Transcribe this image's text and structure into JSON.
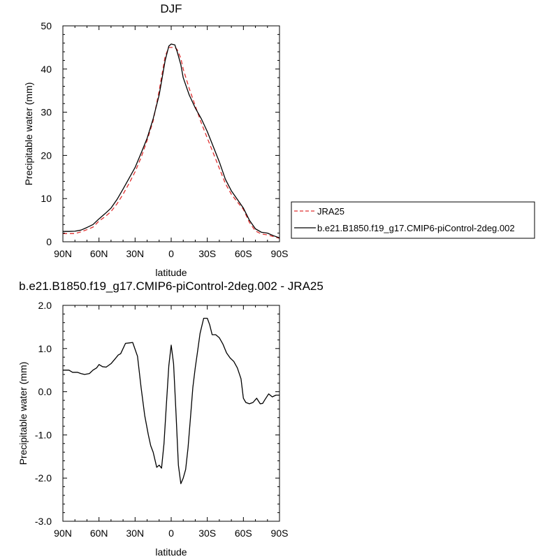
{
  "chart_data": [
    {
      "type": "line",
      "title": "DJF",
      "xlabel": "latitude",
      "ylabel": "Precipitable water (mm)",
      "xlim": [
        -90,
        90
      ],
      "ylim": [
        0,
        50
      ],
      "x_ticks": [
        -90,
        -60,
        -30,
        0,
        30,
        60,
        90
      ],
      "x_tick_labels": [
        "90N",
        "60N",
        "30N",
        "0",
        "30S",
        "60S",
        "90S"
      ],
      "y_ticks": [
        0,
        10,
        20,
        30,
        40,
        50
      ],
      "y_tick_labels": [
        "0",
        "10",
        "20",
        "30",
        "40",
        "50"
      ],
      "legend_position": "right",
      "series": [
        {
          "name": "JRA25",
          "color": "#e03030",
          "dash": "dashed",
          "x": [
            -90,
            -85,
            -80,
            -75,
            -70,
            -65,
            -60,
            -55,
            -50,
            -45,
            -40,
            -35,
            -30,
            -25,
            -20,
            -15,
            -10,
            -5,
            -2,
            0,
            3,
            5,
            8,
            10,
            15,
            20,
            25,
            30,
            35,
            40,
            45,
            50,
            55,
            60,
            65,
            70,
            75,
            80,
            85,
            90
          ],
          "y": [
            1.9,
            1.9,
            1.9,
            2.3,
            2.8,
            3.4,
            4.8,
            5.8,
            7.0,
            8.8,
            11.0,
            13.5,
            16.2,
            19.5,
            23.5,
            28.0,
            35.0,
            43.0,
            45.0,
            45.0,
            45.0,
            44.5,
            42.5,
            40.0,
            35.5,
            31.5,
            27.5,
            24.0,
            20.5,
            17.0,
            13.5,
            11.0,
            9.2,
            7.5,
            4.5,
            2.5,
            1.8,
            1.6,
            1.2,
            0.8
          ]
        },
        {
          "name": "b.e21.B1850.f19_g17.CMIP6-piControl-2deg.002",
          "color": "#000000",
          "dash": "solid",
          "x": [
            -90,
            -85,
            -80,
            -75,
            -70,
            -65,
            -60,
            -55,
            -50,
            -45,
            -40,
            -35,
            -30,
            -25,
            -20,
            -15,
            -10,
            -5,
            -2,
            0,
            3,
            5,
            8,
            10,
            15,
            20,
            25,
            30,
            35,
            40,
            45,
            50,
            55,
            60,
            65,
            70,
            75,
            80,
            85,
            90
          ],
          "y": [
            2.4,
            2.4,
            2.45,
            2.7,
            3.3,
            4.0,
            5.3,
            6.5,
            7.8,
            9.8,
            12.2,
            14.7,
            17.2,
            20.5,
            24.0,
            28.5,
            34.0,
            42.0,
            45.3,
            45.8,
            45.6,
            44.0,
            41.0,
            38.0,
            34.0,
            31.0,
            28.5,
            25.5,
            22.0,
            18.5,
            14.5,
            11.8,
            9.8,
            7.8,
            5.0,
            3.0,
            2.2,
            2.0,
            1.4,
            0.9
          ]
        }
      ]
    },
    {
      "type": "line",
      "title": "b.e21.B1850.f19_g17.CMIP6-piControl-2deg.002 - JRA25",
      "xlabel": "latitude",
      "ylabel": "Precipitable water (mm)",
      "xlim": [
        -90,
        90
      ],
      "ylim": [
        -3.0,
        2.0
      ],
      "x_ticks": [
        -90,
        -60,
        -30,
        0,
        30,
        60,
        90
      ],
      "x_tick_labels": [
        "90N",
        "60N",
        "30N",
        "0",
        "30S",
        "60S",
        "90S"
      ],
      "y_ticks": [
        -3,
        -2,
        -1,
        0,
        1,
        2
      ],
      "y_tick_labels": [
        "-3.0",
        "-2.0",
        "-1.0",
        "0.0",
        "1.0",
        "2.0"
      ],
      "series": [
        {
          "name": "",
          "color": "#000000",
          "dash": "solid",
          "x": [
            -90,
            -85,
            -82,
            -78,
            -75,
            -72,
            -68,
            -65,
            -62,
            -60,
            -57,
            -54,
            -50,
            -47,
            -44,
            -42,
            -38,
            -35,
            -32,
            -28,
            -25,
            -22,
            -19,
            -17,
            -15,
            -12,
            -10,
            -8,
            -6,
            -4,
            -2,
            0,
            2,
            4,
            6,
            8,
            10,
            12,
            14,
            16,
            18,
            20,
            22,
            24,
            27,
            30,
            32,
            34,
            37,
            40,
            43,
            46,
            49,
            52,
            55,
            58,
            60,
            62,
            65,
            68,
            71,
            74,
            76,
            78,
            81,
            84,
            87,
            90
          ],
          "y": [
            0.5,
            0.5,
            0.45,
            0.45,
            0.42,
            0.4,
            0.42,
            0.5,
            0.55,
            0.63,
            0.58,
            0.57,
            0.65,
            0.75,
            0.85,
            0.88,
            1.12,
            1.13,
            1.14,
            0.82,
            0.1,
            -0.55,
            -1.0,
            -1.25,
            -1.4,
            -1.75,
            -1.7,
            -1.77,
            -1.2,
            -0.3,
            0.6,
            1.08,
            0.65,
            -0.5,
            -1.7,
            -2.13,
            -2.0,
            -1.8,
            -1.3,
            -0.6,
            0.1,
            0.55,
            0.95,
            1.35,
            1.7,
            1.7,
            1.55,
            1.32,
            1.32,
            1.25,
            1.1,
            0.9,
            0.78,
            0.7,
            0.55,
            0.3,
            -0.15,
            -0.25,
            -0.28,
            -0.25,
            -0.15,
            -0.28,
            -0.27,
            -0.18,
            -0.05,
            -0.12,
            -0.08,
            -0.08
          ]
        }
      ]
    }
  ]
}
